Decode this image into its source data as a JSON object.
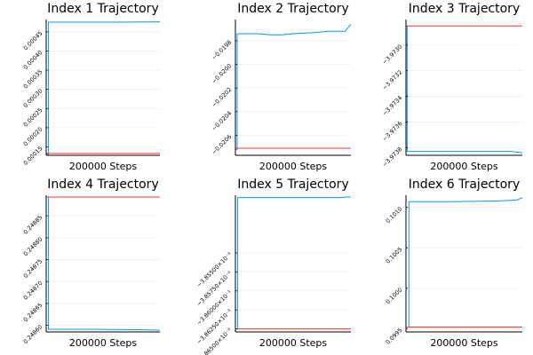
{
  "colors": {
    "trajectory": "#009AFA",
    "reference": "#FF3030",
    "axis": "#000000",
    "grid": "#EBEBEB"
  },
  "chart_data": [
    {
      "type": "line",
      "title": "Index 1 Trajectory",
      "xlabel": "200000 Steps",
      "ylim": [
        0.000128,
        0.000482
      ],
      "yticks": [
        0.00015,
        0.0002,
        0.00025,
        0.0003,
        0.00035,
        0.0004,
        0.00045
      ],
      "yticklabels": [
        "0.00015",
        "0.00020",
        "0.00025",
        "0.00030",
        "0.00035",
        "0.00040",
        "0.00045"
      ],
      "series": [
        {
          "role": "trajectory",
          "points": [
            [
              0,
              0.000131
            ],
            [
              0.02,
              0.000131
            ],
            [
              0.02,
              0.000475
            ],
            [
              0.3,
              0.000475
            ],
            [
              0.6,
              0.000475
            ],
            [
              1,
              0.000476
            ]
          ]
        },
        {
          "role": "reference",
          "points": [
            [
              0,
              0.000133
            ],
            [
              1,
              0.000133
            ]
          ]
        }
      ],
      "grid": true
    },
    {
      "type": "line",
      "title": "Index 2 Trajectory",
      "xlabel": "200000 Steps",
      "ylim": [
        -0.02077,
        -0.01962
      ],
      "yticks": [
        -0.0206,
        -0.0204,
        -0.0202,
        -0.02,
        -0.0198
      ],
      "yticklabels": [
        "−0.0206",
        "−0.0204",
        "−0.0202",
        "−0.0200",
        "−0.0198"
      ],
      "series": [
        {
          "role": "trajectory",
          "points": [
            [
              0,
              -0.02072
            ],
            [
              0.015,
              -0.02072
            ],
            [
              0.015,
              -0.01974
            ],
            [
              0.2,
              -0.01974
            ],
            [
              0.3,
              -0.01975
            ],
            [
              0.4,
              -0.01975
            ],
            [
              0.5,
              -0.01974
            ],
            [
              0.7,
              -0.01973
            ],
            [
              0.8,
              -0.01972
            ],
            [
              0.9,
              -0.01972
            ],
            [
              0.95,
              -0.01972
            ],
            [
              1,
              -0.01966
            ]
          ]
        },
        {
          "role": "reference",
          "points": [
            [
              0,
              -0.02071
            ],
            [
              1,
              -0.02071
            ]
          ]
        }
      ],
      "grid": true
    },
    {
      "type": "line",
      "title": "Index 3 Trajectory",
      "xlabel": "200000 Steps",
      "ylim": [
        -3.97386,
        -3.9728
      ],
      "yticks": [
        -3.9738,
        -3.9736,
        -3.9734,
        -3.9732,
        -3.973
      ],
      "yticklabels": [
        "−3.9738",
        "−3.9736",
        "−3.9734",
        "−3.9732",
        "−3.9730"
      ],
      "series": [
        {
          "role": "trajectory",
          "points": [
            [
              0,
              -3.97285
            ],
            [
              0.01,
              -3.97285
            ],
            [
              0.01,
              -3.97383
            ],
            [
              0.5,
              -3.97383
            ],
            [
              0.9,
              -3.97383
            ],
            [
              1,
              -3.97384
            ]
          ]
        },
        {
          "role": "reference",
          "points": [
            [
              0,
              -3.97285
            ],
            [
              1,
              -3.97285
            ]
          ]
        }
      ],
      "grid": true
    },
    {
      "type": "line",
      "title": "Index 4 Trajectory",
      "xlabel": "200000 Steps",
      "ylim": [
        0.248585,
        0.248897
      ],
      "yticks": [
        0.2486,
        0.24865,
        0.2487,
        0.24875,
        0.2488,
        0.24885
      ],
      "yticklabels": [
        "0.24860",
        "0.24865",
        "0.24870",
        "0.24875",
        "0.24880",
        "0.24885"
      ],
      "series": [
        {
          "role": "trajectory",
          "points": [
            [
              0,
              0.248893
            ],
            [
              0.02,
              0.248893
            ],
            [
              0.02,
              0.248591
            ],
            [
              0.4,
              0.248591
            ],
            [
              0.8,
              0.24859
            ],
            [
              1,
              0.248589
            ]
          ]
        },
        {
          "role": "reference",
          "points": [
            [
              0,
              0.248893
            ],
            [
              1,
              0.248893
            ]
          ]
        }
      ],
      "grid": true
    },
    {
      "type": "line",
      "title": "Index 5 Trajectory",
      "xlabel": "200000 Steps",
      "ylim": [
        -0.0038654,
        -0.0038474
      ],
      "yticks": [
        -0.003865,
        -0.0038625,
        -0.00386,
        -0.0038575,
        -0.003855
      ],
      "yticklabels": [
        "−3.86500×10⁻³",
        "−3.86250×10⁻³",
        "−3.86000×10⁻³",
        "−3.85750×10⁻³",
        "−3.85500×10⁻³"
      ],
      "series": [
        {
          "role": "trajectory",
          "points": [
            [
              0,
              -0.003865
            ],
            [
              0.02,
              -0.003865
            ],
            [
              0.02,
              -0.0038477
            ],
            [
              0.3,
              -0.0038477
            ],
            [
              0.6,
              -0.0038477
            ],
            [
              0.9,
              -0.0038477
            ],
            [
              1,
              -0.0038476
            ]
          ]
        },
        {
          "role": "reference",
          "points": [
            [
              0,
              -0.003865
            ],
            [
              1,
              -0.003865
            ]
          ]
        }
      ],
      "grid": true
    },
    {
      "type": "line",
      "title": "Index 6 Trajectory",
      "xlabel": "200000 Steps",
      "ylim": [
        0.09946,
        0.10115
      ],
      "yticks": [
        0.0995,
        0.1,
        0.1005,
        0.101
      ],
      "yticklabels": [
        "0.0995",
        "0.1000",
        "0.1005",
        "0.1010"
      ],
      "series": [
        {
          "role": "trajectory",
          "points": [
            [
              0,
              0.09952
            ],
            [
              0.025,
              0.09952
            ],
            [
              0.025,
              0.10107
            ],
            [
              0.4,
              0.10107
            ],
            [
              0.8,
              0.10108
            ],
            [
              0.95,
              0.10109
            ],
            [
              1,
              0.10112
            ]
          ]
        },
        {
          "role": "reference",
          "points": [
            [
              0,
              0.09952
            ],
            [
              1,
              0.09952
            ]
          ]
        }
      ],
      "grid": true
    }
  ]
}
